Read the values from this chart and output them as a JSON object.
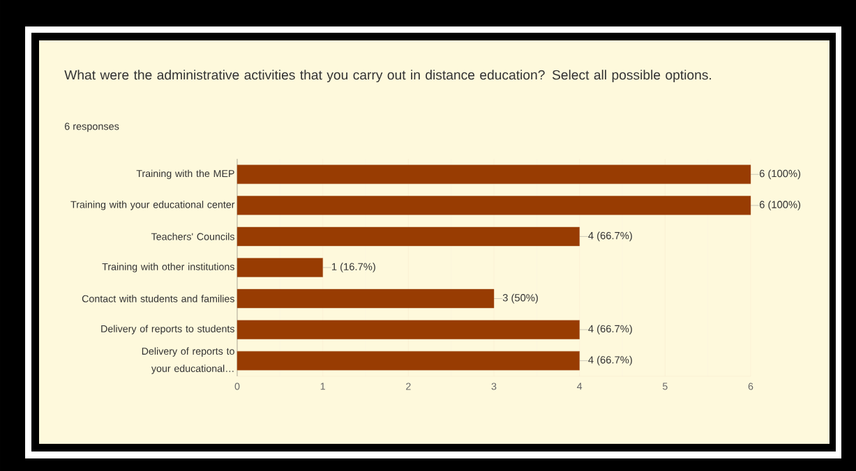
{
  "chart_data": {
    "type": "bar",
    "orientation": "horizontal",
    "title": "What were the administrative activities that you carry out in distance education? Select all possible options.",
    "subtitle": "6 responses",
    "categories": [
      "Training with the MEP",
      "Training with your educational center",
      "Teachers' Councils",
      "Training with other institutions",
      "Contact with students and families",
      "Delivery of reports to students",
      "Delivery of reports to your educational…"
    ],
    "values": [
      6,
      6,
      4,
      1,
      3,
      4,
      4
    ],
    "value_labels": [
      "6 (100%)",
      "6 (100%)",
      "4 (66.7%)",
      "1 (16.7%)",
      "3 (50%)",
      "4 (66.7%)",
      "4 (66.7%)"
    ],
    "color": "#983c02",
    "xlim": [
      0,
      6
    ],
    "xticks": [
      0,
      1,
      2,
      3,
      4,
      5,
      6
    ],
    "grid": "x"
  }
}
